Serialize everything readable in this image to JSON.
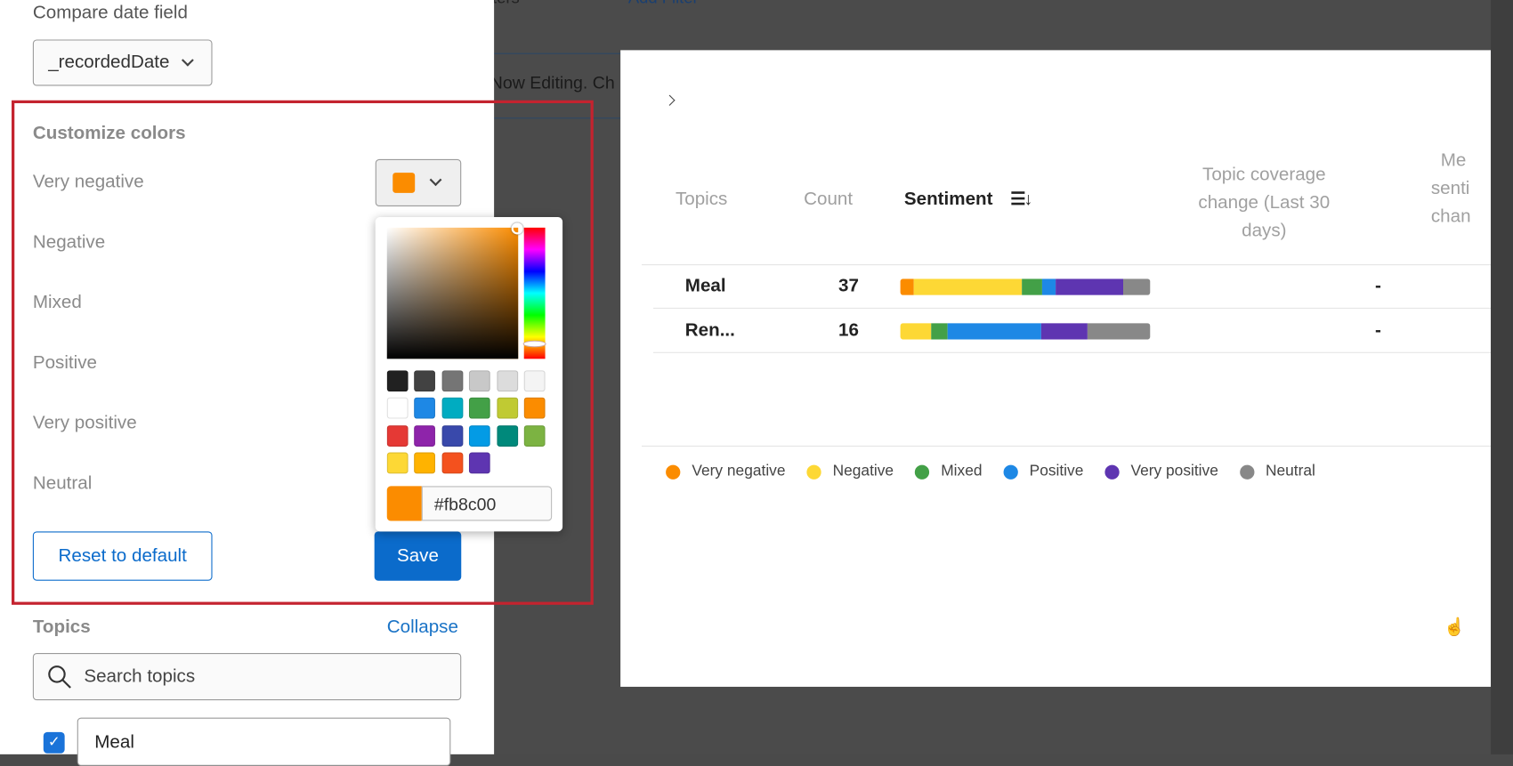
{
  "background": {
    "filter_label_partial": "ters",
    "add_filter": "Add Filter",
    "now_editing": "Now Editing. Ch"
  },
  "panel": {
    "compare_date_label": "Compare date field",
    "compare_date_value": "_recordedDate",
    "customize_title": "Customize colors",
    "sentiments": [
      {
        "label": "Very negative",
        "color": "#fb8c00"
      },
      {
        "label": "Negative",
        "color": "#fdd835"
      },
      {
        "label": "Mixed",
        "color": "#43a047"
      },
      {
        "label": "Positive",
        "color": "#1e88e5"
      },
      {
        "label": "Very positive",
        "color": "#5e35b1"
      },
      {
        "label": "Neutral",
        "color": "#888888"
      }
    ],
    "reset_label": "Reset to default",
    "save_label": "Save",
    "topics_title": "Topics",
    "collapse_label": "Collapse",
    "search_placeholder": "Search topics",
    "topic_items": [
      {
        "label": "Meal",
        "checked": true
      }
    ]
  },
  "color_picker": {
    "hex_value": "#fb8c00",
    "current_color": "#fb8c00",
    "swatches": [
      "#212121",
      "#424242",
      "#757575",
      "#c8c8c8",
      "#dcdcdc",
      "#f4f4f4",
      "#ffffff",
      "#1e88e5",
      "#00acc1",
      "#43a047",
      "#c0ca33",
      "#fb8c00",
      "#e53935",
      "#8e24aa",
      "#3949ab",
      "#039be5",
      "#00897b",
      "#7cb342",
      "#fdd835",
      "#ffb300",
      "#f4511e",
      "#5e35b1"
    ]
  },
  "widget": {
    "columns": {
      "topics": "Topics",
      "count": "Count",
      "sentiment": "Sentiment",
      "coverage": [
        "Topic coverage",
        "change (Last 30",
        "days)"
      ],
      "mean_partial": [
        "Me",
        "senti",
        "chan"
      ]
    },
    "rows": [
      {
        "topic": "Meal",
        "count": "37",
        "coverage": "-",
        "sentiment": [
          2,
          16,
          3,
          2,
          10,
          4
        ]
      },
      {
        "topic": "Ren...",
        "count": "16",
        "coverage": "-",
        "sentiment": [
          0,
          2,
          1,
          6,
          3,
          4
        ]
      }
    ],
    "legend": [
      "Very negative",
      "Negative",
      "Mixed",
      "Positive",
      "Very positive",
      "Neutral"
    ]
  }
}
